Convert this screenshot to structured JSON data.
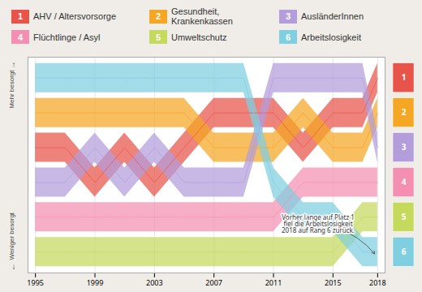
{
  "chart_data": {
    "type": "bump",
    "x": [
      1995,
      1997,
      1999,
      2001,
      2003,
      2005,
      2007,
      2009,
      2011,
      2013,
      2015,
      2017,
      2018
    ],
    "series": [
      {
        "name": "AHV / Altersvorsorge",
        "number": 1,
        "color": "#e8534a",
        "values": [
          3,
          3,
          4,
          3,
          4,
          3,
          2,
          2,
          2,
          3,
          2,
          2,
          1
        ]
      },
      {
        "name": "Gesundheit, Krankenkassen",
        "number": 2,
        "color": "#f5a623",
        "values": [
          2,
          2,
          2,
          2,
          2,
          2,
          3,
          3,
          3,
          2,
          3,
          3,
          2
        ]
      },
      {
        "name": "AusländerInnen",
        "number": 3,
        "color": "#b39ddb",
        "values": [
          4,
          4,
          3,
          4,
          3,
          4,
          4,
          4,
          1,
          1,
          1,
          1,
          3
        ]
      },
      {
        "name": "Flüchtlinge / Asyl",
        "number": 4,
        "color": "#f48fb1",
        "values": [
          5,
          5,
          5,
          5,
          5,
          5,
          5,
          5,
          5,
          4,
          4,
          4,
          4
        ]
      },
      {
        "name": "Umweltschutz",
        "number": 5,
        "color": "#c5d95d",
        "values": [
          6,
          6,
          6,
          6,
          6,
          6,
          6,
          6,
          6,
          6,
          6,
          5,
          5
        ]
      },
      {
        "name": "Arbeitslosigkeit",
        "number": 6,
        "color": "#80cfe0",
        "values": [
          1,
          1,
          1,
          1,
          1,
          1,
          1,
          1,
          4,
          5,
          5,
          6,
          6
        ]
      }
    ],
    "xlim": [
      1994.5,
      2018.5
    ],
    "xticks": [
      1995,
      1999,
      2003,
      2007,
      2011,
      2015,
      2018
    ],
    "ylim": [
      6.6,
      0.4
    ],
    "grid": true,
    "legend": "top",
    "tick_labels": "x",
    "band_half_width": 0.42,
    "ylabel_top": "Mehr besorgt",
    "ylabel_top_arrow": "↑",
    "ylabel_bottom": "Weniger besorgt",
    "ylabel_bottom_arrow": "↓",
    "annotation": {
      "text": "Vorher lange auf Platz 1\nfiel die Arbeitslosigkeit\n2018 auf Rang 6 zurück.",
      "x": 2017.8,
      "y": 6.05,
      "text_x": 2014.0,
      "text_y": 5.2
    },
    "background_color": "#f0ede8",
    "plot_background": "#ffffff"
  }
}
